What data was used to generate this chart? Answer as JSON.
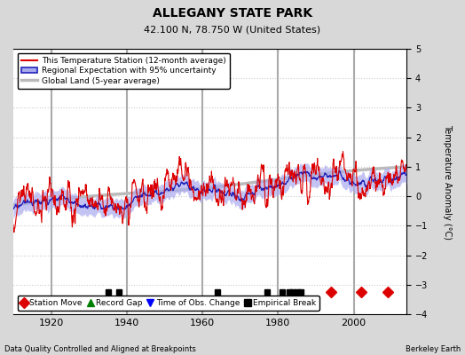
{
  "title": "ALLEGANY STATE PARK",
  "subtitle": "42.100 N, 78.750 W (United States)",
  "xlabel_left": "Data Quality Controlled and Aligned at Breakpoints",
  "xlabel_right": "Berkeley Earth",
  "ylabel": "Temperature Anomaly (°C)",
  "xlim": [
    1910,
    2014
  ],
  "ylim": [
    -4,
    5
  ],
  "yticks": [
    -4,
    -3,
    -2,
    -1,
    0,
    1,
    2,
    3,
    4,
    5
  ],
  "xticks": [
    1920,
    1940,
    1960,
    1980,
    2000
  ],
  "bg_color": "#d8d8d8",
  "plot_bg_color": "#ffffff",
  "grid_color": "#cccccc",
  "vline_color": "#aaaaaa",
  "station_line_color": "#dd0000",
  "regional_line_color": "#2222bb",
  "regional_fill_color": "#aaaaee",
  "global_line_color": "#bbbbbb",
  "empirical_break_years": [
    1935,
    1938,
    1964,
    1977,
    1981,
    1983,
    1984,
    1985,
    1986
  ],
  "station_move_years": [
    1994,
    2002,
    2009
  ],
  "time_obs_years": [],
  "record_gap_years": [],
  "legend_labels": [
    "This Temperature Station (12-month average)",
    "Regional Expectation with 95% uncertainty",
    "Global Land (5-year average)"
  ],
  "legend_marker_labels": [
    "Station Move",
    "Record Gap",
    "Time of Obs. Change",
    "Empirical Break"
  ]
}
